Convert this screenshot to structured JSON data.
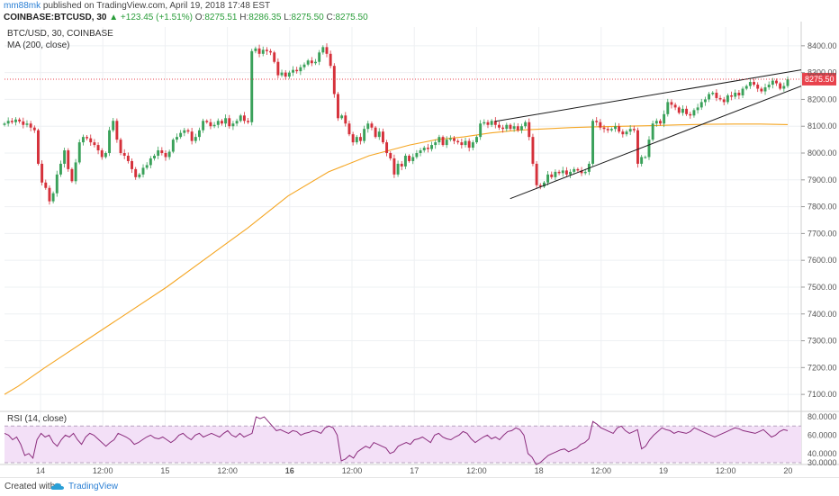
{
  "header": {
    "author": "mm88mk",
    "published_text": "published on TradingView.com, April 19, 2018 17:48 EST",
    "symbol": "COINBASE:BTCUSD, 30",
    "change": "▲ +123.45 (+1.51%)",
    "o_label": "O:",
    "o_value": "8275.51",
    "h_label": "H:",
    "h_value": "8286.35",
    "l_label": "L:",
    "l_value": "8275.50",
    "c_label": "C:",
    "c_value": "8275.50"
  },
  "footer": {
    "created_with": "Created with",
    "brand": "TradingView"
  },
  "colors": {
    "up": "#26a69a",
    "up_candle": "#3aa15a",
    "down_candle": "#d5303a",
    "ma": "#f5a623",
    "rsi_line": "#8b2c7d",
    "rsi_band": "#f3e0f7",
    "pattern_line": "#1a1a1a",
    "price_tag": "#e8424c"
  },
  "chart_data": {
    "type": "candlestick",
    "title": "BTC/USD, 30, COINBASE",
    "indicator_label": "MA (200, close)",
    "last_price": "8275.50",
    "ylim": [
      7040,
      8470
    ],
    "y_ticks": [
      "8400.00",
      "8300.00",
      "8200.00",
      "8100.00",
      "8000.00",
      "7900.00",
      "7800.00",
      "7700.00",
      "7600.00",
      "7500.00",
      "7400.00",
      "7300.00",
      "7200.00",
      "7100.00"
    ],
    "x_ticks": [
      "14",
      "12:00",
      "15",
      "12:00",
      "16",
      "12:00",
      "17",
      "12:00",
      "18",
      "12:00",
      "19",
      "12:00",
      "20"
    ],
    "x_tick_bold": [
      false,
      false,
      false,
      false,
      true,
      false,
      false,
      false,
      false,
      false,
      false,
      false,
      false
    ],
    "closes": [
      8110,
      8120,
      8115,
      8125,
      8118,
      8105,
      8110,
      8095,
      8085,
      7960,
      7890,
      7870,
      7820,
      7850,
      7920,
      7960,
      8010,
      7940,
      7895,
      7965,
      8040,
      8060,
      8055,
      8040,
      8030,
      8010,
      7985,
      8000,
      8085,
      8120,
      8050,
      8000,
      7990,
      7970,
      7940,
      7910,
      7920,
      7945,
      7955,
      7980,
      7990,
      8010,
      8000,
      7985,
      8005,
      8050,
      8060,
      8075,
      8085,
      8080,
      8045,
      8060,
      8085,
      8120,
      8115,
      8100,
      8105,
      8120,
      8110,
      8130,
      8100,
      8110,
      8120,
      8140,
      8120,
      8115,
      8380,
      8390,
      8370,
      8385,
      8380,
      8375,
      8340,
      8290,
      8300,
      8285,
      8300,
      8310,
      8305,
      8320,
      8330,
      8345,
      8335,
      8340,
      8375,
      8395,
      8370,
      8325,
      8220,
      8130,
      8140,
      8110,
      8070,
      8040,
      8060,
      8045,
      8090,
      8110,
      8095,
      8060,
      8080,
      8040,
      8000,
      7980,
      7920,
      7960,
      7950,
      7990,
      7970,
      7985,
      8000,
      8010,
      8020,
      8015,
      8030,
      8040,
      8060,
      8030,
      8050,
      8055,
      8045,
      8040,
      8030,
      8045,
      8020,
      8040,
      8060,
      8110,
      8115,
      8105,
      8120,
      8105,
      8095,
      8090,
      8105,
      8090,
      8100,
      8085,
      8100,
      8115,
      8060,
      7960,
      7880,
      7875,
      7890,
      7920,
      7910,
      7930,
      7925,
      7935,
      7920,
      7930,
      7940,
      7935,
      7925,
      7930,
      7960,
      8120,
      8115,
      8095,
      8090,
      8085,
      8090,
      8100,
      8080,
      8070,
      8080,
      8090,
      8085,
      7960,
      7985,
      7985,
      8050,
      8110,
      8120,
      8110,
      8145,
      8190,
      8180,
      8170,
      8150,
      8165,
      8145,
      8140,
      8160,
      8170,
      8190,
      8200,
      8220,
      8225,
      8205,
      8200,
      8190,
      8215,
      8210,
      8225,
      8215,
      8240,
      8250,
      8265,
      8255,
      8240,
      8230,
      8245,
      8255,
      8270,
      8260,
      8240,
      8250,
      8275
    ],
    "ma_200": [
      [
        0,
        7100
      ],
      [
        10,
        7130
      ],
      [
        30,
        7200
      ],
      [
        60,
        7300
      ],
      [
        90,
        7400
      ],
      [
        120,
        7500
      ],
      [
        150,
        7610
      ],
      [
        180,
        7720
      ],
      [
        210,
        7840
      ],
      [
        240,
        7930
      ],
      [
        270,
        7990
      ],
      [
        300,
        8030
      ],
      [
        320,
        8050
      ],
      [
        340,
        8060
      ],
      [
        360,
        8075
      ],
      [
        380,
        8085
      ],
      [
        400,
        8090
      ],
      [
        420,
        8095
      ],
      [
        440,
        8098
      ],
      [
        460,
        8100
      ],
      [
        480,
        8102
      ],
      [
        500,
        8105
      ],
      [
        520,
        8107
      ],
      [
        540,
        8108
      ],
      [
        560,
        8108
      ],
      [
        580,
        8106
      ]
    ],
    "wedge_upper": [
      [
        258,
        8118
      ],
      [
        412,
        8310
      ]
    ],
    "wedge_lower": [
      [
        266,
        7830
      ],
      [
        405,
        8250
      ]
    ],
    "rsi": {
      "label": "RSI (14, close)",
      "ylim": [
        30,
        84
      ],
      "ticks": [
        "80.0000",
        "60.0000",
        "40.0000",
        "30.0000"
      ],
      "band": [
        30,
        70
      ],
      "values": [
        62,
        60,
        55,
        58,
        50,
        38,
        40,
        35,
        55,
        62,
        58,
        60,
        52,
        48,
        55,
        60,
        58,
        62,
        55,
        50,
        58,
        62,
        60,
        56,
        52,
        48,
        52,
        55,
        62,
        60,
        58,
        55,
        50,
        52,
        55,
        58,
        60,
        57,
        56,
        58,
        55,
        52,
        55,
        60,
        62,
        58,
        55,
        60,
        62,
        58,
        60,
        62,
        60,
        58,
        62,
        65,
        60,
        58,
        62,
        58,
        60,
        62,
        80,
        78,
        80,
        75,
        70,
        65,
        66,
        64,
        62,
        65,
        64,
        60,
        62,
        63,
        65,
        64,
        62,
        68,
        70,
        68,
        60,
        32,
        34,
        38,
        35,
        42,
        45,
        48,
        46,
        52,
        50,
        48,
        46,
        40,
        42,
        48,
        50,
        52,
        50,
        55,
        56,
        58,
        55,
        52,
        60,
        62,
        58,
        56,
        55,
        58,
        60,
        64,
        62,
        56,
        52,
        55,
        58,
        60,
        56,
        58,
        55,
        60,
        64,
        65,
        68,
        66,
        60,
        40,
        36,
        28,
        30,
        34,
        38,
        40,
        42,
        44,
        45,
        42,
        44,
        46,
        50,
        52,
        56,
        75,
        72,
        68,
        66,
        64,
        62,
        68,
        70,
        65,
        62,
        64,
        66,
        45,
        48,
        55,
        60,
        64,
        68,
        66,
        65,
        62,
        64,
        63,
        62,
        64,
        68,
        66,
        64,
        62,
        60,
        58,
        60,
        62,
        64,
        66,
        68,
        67,
        65,
        64,
        63,
        62,
        64,
        66,
        62,
        58,
        60,
        64,
        66,
        65
      ]
    }
  }
}
